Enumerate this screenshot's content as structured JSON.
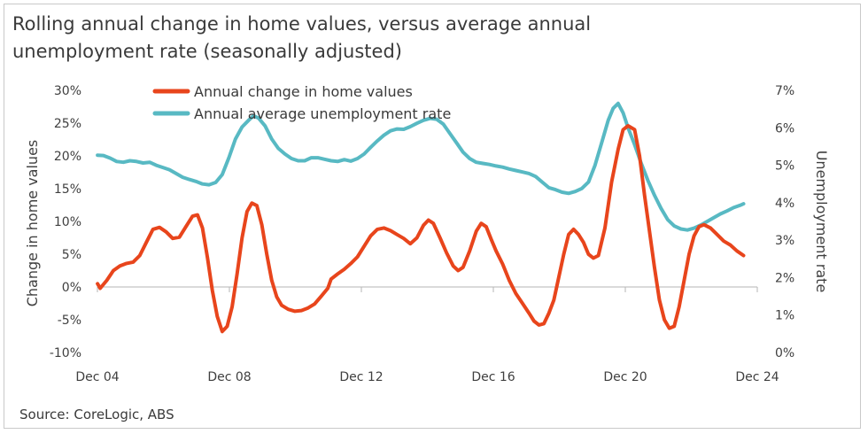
{
  "title": "Rolling annual change in home values, versus average annual\nunemployment rate (seasonally adjusted)",
  "source": "Source: CoreLogic, ABS",
  "colors": {
    "home_values": "#e8451c",
    "unemployment": "#58b9c3",
    "axis": "#b5b5b5"
  },
  "chart_data": {
    "type": "line",
    "title": "Rolling annual change in home values, versus average annual unemployment rate (seasonally adjusted)",
    "xlabel": "",
    "ylabel": "Change in home values",
    "y2label": "Unemployment rate",
    "ylim": [
      -0.1,
      0.3
    ],
    "y2lim": [
      0,
      0.07
    ],
    "xlim": [
      2004.917,
      2024.917
    ],
    "x_ticks": [
      {
        "x": 2004.917,
        "label": "Dec 04"
      },
      {
        "x": 2008.917,
        "label": "Dec 08"
      },
      {
        "x": 2012.917,
        "label": "Dec 12"
      },
      {
        "x": 2016.917,
        "label": "Dec 16"
      },
      {
        "x": 2020.917,
        "label": "Dec 20"
      },
      {
        "x": 2024.917,
        "label": "Dec 24"
      }
    ],
    "y_ticks": [
      {
        "v": 0.3,
        "label": "30%"
      },
      {
        "v": 0.25,
        "label": "25%"
      },
      {
        "v": 0.2,
        "label": "20%"
      },
      {
        "v": 0.15,
        "label": "15%"
      },
      {
        "v": 0.1,
        "label": "10%"
      },
      {
        "v": 0.05,
        "label": "5%"
      },
      {
        "v": 0.0,
        "label": "0%"
      },
      {
        "v": -0.05,
        "label": "-5%"
      },
      {
        "v": -0.1,
        "label": "-10%"
      }
    ],
    "y2_ticks": [
      {
        "v": 0.07,
        "label": "7%"
      },
      {
        "v": 0.06,
        "label": "6%"
      },
      {
        "v": 0.05,
        "label": "5%"
      },
      {
        "v": 0.04,
        "label": "4%"
      },
      {
        "v": 0.03,
        "label": "3%"
      },
      {
        "v": 0.02,
        "label": "2%"
      },
      {
        "v": 0.01,
        "label": "1%"
      },
      {
        "v": 0.0,
        "label": "0%"
      }
    ],
    "legend_position": "top-center",
    "series": [
      {
        "name": "Annual change in home values",
        "axis": "left",
        "points": [
          [
            2004.92,
            0.005
          ],
          [
            2005.0,
            -0.002
          ],
          [
            2005.2,
            0.01
          ],
          [
            2005.4,
            0.025
          ],
          [
            2005.6,
            0.032
          ],
          [
            2005.8,
            0.036
          ],
          [
            2006.0,
            0.038
          ],
          [
            2006.2,
            0.048
          ],
          [
            2006.4,
            0.068
          ],
          [
            2006.6,
            0.088
          ],
          [
            2006.8,
            0.091
          ],
          [
            2007.0,
            0.084
          ],
          [
            2007.2,
            0.074
          ],
          [
            2007.4,
            0.076
          ],
          [
            2007.6,
            0.092
          ],
          [
            2007.8,
            0.108
          ],
          [
            2007.95,
            0.11
          ],
          [
            2008.1,
            0.09
          ],
          [
            2008.25,
            0.045
          ],
          [
            2008.4,
            -0.005
          ],
          [
            2008.55,
            -0.045
          ],
          [
            2008.7,
            -0.068
          ],
          [
            2008.85,
            -0.06
          ],
          [
            2009.0,
            -0.03
          ],
          [
            2009.15,
            0.02
          ],
          [
            2009.3,
            0.075
          ],
          [
            2009.45,
            0.115
          ],
          [
            2009.6,
            0.128
          ],
          [
            2009.75,
            0.124
          ],
          [
            2009.9,
            0.095
          ],
          [
            2010.05,
            0.05
          ],
          [
            2010.2,
            0.01
          ],
          [
            2010.35,
            -0.015
          ],
          [
            2010.5,
            -0.028
          ],
          [
            2010.7,
            -0.034
          ],
          [
            2010.9,
            -0.037
          ],
          [
            2011.1,
            -0.036
          ],
          [
            2011.3,
            -0.032
          ],
          [
            2011.5,
            -0.026
          ],
          [
            2011.7,
            -0.014
          ],
          [
            2011.9,
            -0.002
          ],
          [
            2012.0,
            0.012
          ],
          [
            2012.2,
            0.02
          ],
          [
            2012.4,
            0.027
          ],
          [
            2012.6,
            0.036
          ],
          [
            2012.8,
            0.046
          ],
          [
            2013.0,
            0.062
          ],
          [
            2013.2,
            0.078
          ],
          [
            2013.4,
            0.088
          ],
          [
            2013.6,
            0.09
          ],
          [
            2013.8,
            0.086
          ],
          [
            2014.0,
            0.08
          ],
          [
            2014.2,
            0.074
          ],
          [
            2014.4,
            0.066
          ],
          [
            2014.6,
            0.075
          ],
          [
            2014.8,
            0.094
          ],
          [
            2014.95,
            0.102
          ],
          [
            2015.1,
            0.097
          ],
          [
            2015.3,
            0.075
          ],
          [
            2015.5,
            0.052
          ],
          [
            2015.7,
            0.032
          ],
          [
            2015.85,
            0.025
          ],
          [
            2016.0,
            0.03
          ],
          [
            2016.2,
            0.055
          ],
          [
            2016.4,
            0.085
          ],
          [
            2016.55,
            0.097
          ],
          [
            2016.7,
            0.092
          ],
          [
            2016.85,
            0.073
          ],
          [
            2017.0,
            0.055
          ],
          [
            2017.2,
            0.035
          ],
          [
            2017.4,
            0.01
          ],
          [
            2017.6,
            -0.01
          ],
          [
            2017.8,
            -0.025
          ],
          [
            2018.0,
            -0.04
          ],
          [
            2018.15,
            -0.052
          ],
          [
            2018.3,
            -0.058
          ],
          [
            2018.45,
            -0.056
          ],
          [
            2018.6,
            -0.04
          ],
          [
            2018.75,
            -0.02
          ],
          [
            2018.9,
            0.015
          ],
          [
            2019.05,
            0.05
          ],
          [
            2019.2,
            0.08
          ],
          [
            2019.35,
            0.088
          ],
          [
            2019.5,
            0.08
          ],
          [
            2019.65,
            0.068
          ],
          [
            2019.8,
            0.05
          ],
          [
            2019.95,
            0.044
          ],
          [
            2020.1,
            0.048
          ],
          [
            2020.3,
            0.09
          ],
          [
            2020.5,
            0.16
          ],
          [
            2020.7,
            0.21
          ],
          [
            2020.85,
            0.24
          ],
          [
            2021.0,
            0.246
          ],
          [
            2021.2,
            0.24
          ],
          [
            2021.35,
            0.2
          ],
          [
            2021.5,
            0.14
          ],
          [
            2021.65,
            0.085
          ],
          [
            2021.8,
            0.03
          ],
          [
            2021.95,
            -0.02
          ],
          [
            2022.1,
            -0.05
          ],
          [
            2022.25,
            -0.063
          ],
          [
            2022.4,
            -0.06
          ],
          [
            2022.55,
            -0.03
          ],
          [
            2022.7,
            0.01
          ],
          [
            2022.85,
            0.05
          ],
          [
            2023.0,
            0.078
          ],
          [
            2023.15,
            0.092
          ],
          [
            2023.3,
            0.095
          ],
          [
            2023.5,
            0.09
          ],
          [
            2023.7,
            0.08
          ],
          [
            2023.9,
            0.07
          ],
          [
            2024.1,
            0.064
          ],
          [
            2024.3,
            0.055
          ],
          [
            2024.5,
            0.048
          ]
        ]
      },
      {
        "name": "Annual average unemployment rate",
        "axis": "right",
        "points": [
          [
            2004.92,
            0.0527
          ],
          [
            2005.1,
            0.0526
          ],
          [
            2005.3,
            0.0519
          ],
          [
            2005.5,
            0.051
          ],
          [
            2005.7,
            0.0508
          ],
          [
            2005.9,
            0.0512
          ],
          [
            2006.1,
            0.051
          ],
          [
            2006.3,
            0.0506
          ],
          [
            2006.5,
            0.0508
          ],
          [
            2006.7,
            0.05
          ],
          [
            2006.9,
            0.0494
          ],
          [
            2007.1,
            0.0488
          ],
          [
            2007.3,
            0.0478
          ],
          [
            2007.5,
            0.0468
          ],
          [
            2007.7,
            0.0462
          ],
          [
            2007.9,
            0.0457
          ],
          [
            2008.1,
            0.045
          ],
          [
            2008.3,
            0.0448
          ],
          [
            2008.5,
            0.0454
          ],
          [
            2008.7,
            0.0475
          ],
          [
            2008.9,
            0.052
          ],
          [
            2009.1,
            0.057
          ],
          [
            2009.3,
            0.0602
          ],
          [
            2009.5,
            0.062
          ],
          [
            2009.65,
            0.0632
          ],
          [
            2009.8,
            0.0626
          ],
          [
            2010.0,
            0.0605
          ],
          [
            2010.2,
            0.057
          ],
          [
            2010.4,
            0.0545
          ],
          [
            2010.6,
            0.053
          ],
          [
            2010.8,
            0.0518
          ],
          [
            2011.0,
            0.0512
          ],
          [
            2011.2,
            0.0512
          ],
          [
            2011.4,
            0.052
          ],
          [
            2011.6,
            0.052
          ],
          [
            2011.8,
            0.0516
          ],
          [
            2012.0,
            0.0512
          ],
          [
            2012.2,
            0.051
          ],
          [
            2012.4,
            0.0515
          ],
          [
            2012.6,
            0.0511
          ],
          [
            2012.8,
            0.0518
          ],
          [
            2013.0,
            0.053
          ],
          [
            2013.2,
            0.0548
          ],
          [
            2013.4,
            0.0565
          ],
          [
            2013.6,
            0.058
          ],
          [
            2013.8,
            0.0592
          ],
          [
            2014.0,
            0.0597
          ],
          [
            2014.2,
            0.0596
          ],
          [
            2014.4,
            0.0603
          ],
          [
            2014.6,
            0.0612
          ],
          [
            2014.8,
            0.062
          ],
          [
            2015.0,
            0.0625
          ],
          [
            2015.2,
            0.0623
          ],
          [
            2015.4,
            0.061
          ],
          [
            2015.6,
            0.0585
          ],
          [
            2015.8,
            0.056
          ],
          [
            2016.0,
            0.0535
          ],
          [
            2016.2,
            0.0518
          ],
          [
            2016.4,
            0.0508
          ],
          [
            2016.6,
            0.0505
          ],
          [
            2016.8,
            0.0502
          ],
          [
            2017.0,
            0.0498
          ],
          [
            2017.2,
            0.0495
          ],
          [
            2017.4,
            0.049
          ],
          [
            2017.6,
            0.0486
          ],
          [
            2017.8,
            0.0482
          ],
          [
            2018.0,
            0.0478
          ],
          [
            2018.2,
            0.047
          ],
          [
            2018.4,
            0.0455
          ],
          [
            2018.6,
            0.044
          ],
          [
            2018.8,
            0.0435
          ],
          [
            2019.0,
            0.0428
          ],
          [
            2019.2,
            0.0425
          ],
          [
            2019.4,
            0.043
          ],
          [
            2019.6,
            0.0438
          ],
          [
            2019.8,
            0.0455
          ],
          [
            2020.0,
            0.05
          ],
          [
            2020.2,
            0.056
          ],
          [
            2020.4,
            0.062
          ],
          [
            2020.55,
            0.0652
          ],
          [
            2020.7,
            0.0665
          ],
          [
            2020.85,
            0.064
          ],
          [
            2021.0,
            0.06
          ],
          [
            2021.2,
            0.0555
          ],
          [
            2021.4,
            0.0505
          ],
          [
            2021.6,
            0.046
          ],
          [
            2021.8,
            0.042
          ],
          [
            2022.0,
            0.0385
          ],
          [
            2022.2,
            0.0355
          ],
          [
            2022.4,
            0.0338
          ],
          [
            2022.6,
            0.033
          ],
          [
            2022.8,
            0.0327
          ],
          [
            2023.0,
            0.0332
          ],
          [
            2023.2,
            0.034
          ],
          [
            2023.4,
            0.035
          ],
          [
            2023.6,
            0.036
          ],
          [
            2023.8,
            0.037
          ],
          [
            2024.0,
            0.0378
          ],
          [
            2024.2,
            0.0387
          ],
          [
            2024.4,
            0.0393
          ],
          [
            2024.5,
            0.0397
          ]
        ]
      }
    ]
  }
}
